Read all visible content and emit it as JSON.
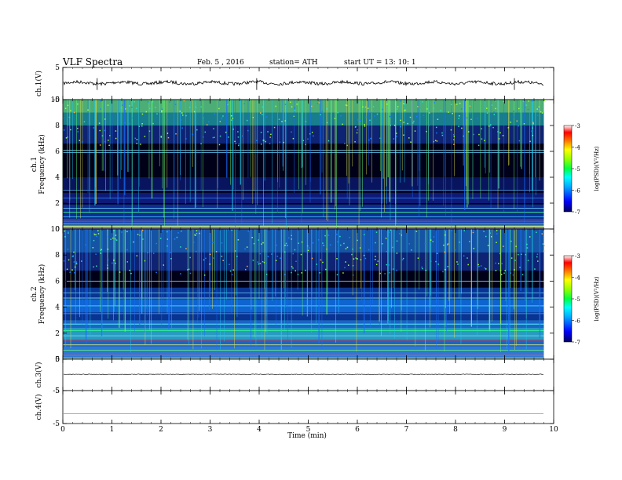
{
  "header": {
    "title": "VLF  Spectra",
    "date": "Feb. 5  , 2016",
    "station": "station= ATH",
    "start": "start  UT  =   13: 10: 1"
  },
  "chart_data": [
    {
      "type": "line",
      "name": "ch1-waveform",
      "ylabel": "ch.1(V)",
      "ylim": [
        -5,
        5
      ],
      "yticks": [
        5,
        -5
      ],
      "xlim": [
        0,
        10
      ],
      "trace_level": 0.2,
      "trace_end": 9.8
    },
    {
      "type": "heatmap",
      "name": "ch1-spectrogram",
      "ylabel_lines": [
        "ch.1",
        "Frequency  (kHz)"
      ],
      "ylim": [
        0,
        10
      ],
      "yticks": [
        0,
        2,
        4,
        6,
        8,
        10
      ],
      "xlim": [
        0,
        10
      ],
      "trace_end": 9.8,
      "colorbar": {
        "label": "log(PSD)(V²/Hz)",
        "range": [
          -7,
          -3
        ],
        "ticks": [
          -3,
          -4,
          -5,
          -6,
          -7
        ]
      }
    },
    {
      "type": "heatmap",
      "name": "ch2-spectrogram",
      "ylabel_lines": [
        "ch.2",
        "Frequency  (kHz)"
      ],
      "ylim": [
        0,
        10
      ],
      "yticks": [
        0,
        2,
        4,
        6,
        8,
        10
      ],
      "xlim": [
        0,
        10
      ],
      "trace_end": 9.8,
      "colorbar": {
        "label": "log(PSD)(V²/Hz)",
        "range": [
          -7,
          -3
        ],
        "ticks": [
          -3,
          -4,
          -5,
          -6,
          -7
        ]
      }
    },
    {
      "type": "line",
      "name": "ch3-waveform",
      "ylabel": "ch.3(V)",
      "ylim": [
        -5,
        5
      ],
      "yticks": [
        5,
        -5
      ],
      "xlim": [
        0,
        10
      ],
      "trace_level": 0.2,
      "trace_end": 9.8
    },
    {
      "type": "line",
      "name": "ch4-waveform",
      "ylabel": "ch.4(V)",
      "ylim": [
        -5,
        5
      ],
      "yticks": [
        5,
        -5
      ],
      "xlim": [
        0,
        10
      ],
      "trace_level": -2.0,
      "trace_end": 9.8
    }
  ],
  "xaxis": {
    "label": "Time  (min)",
    "ticks": [
      0,
      1,
      2,
      3,
      4,
      5,
      6,
      7,
      8,
      9,
      10
    ]
  }
}
